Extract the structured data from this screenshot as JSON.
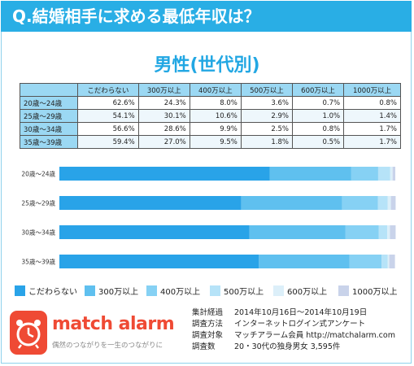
{
  "title": "Q.結婚相手に求める最低年収は？",
  "subtitle": "男性(世代別)",
  "colors": [
    "#29a3e8",
    "#5fc0ef",
    "#86d1f4",
    "#b6e3f8",
    "#dceff9",
    "#c9d3ea"
  ],
  "chart_data": {
    "type": "bar",
    "stacked": true,
    "orientation": "horizontal",
    "categories": [
      "20歳〜24歳",
      "25歳〜29歳",
      "30歳〜34歳",
      "35歳〜39歳"
    ],
    "series": [
      {
        "name": "こだわらない",
        "values": [
          62.6,
          54.1,
          56.6,
          59.4
        ]
      },
      {
        "name": "300万以上",
        "values": [
          24.3,
          30.1,
          28.6,
          27.0
        ]
      },
      {
        "name": "400万以上",
        "values": [
          8.0,
          10.6,
          9.9,
          9.5
        ]
      },
      {
        "name": "500万以上",
        "values": [
          3.6,
          2.9,
          2.5,
          1.8
        ]
      },
      {
        "name": "600万以上",
        "values": [
          0.7,
          1.0,
          0.8,
          0.5
        ]
      },
      {
        "name": "1000万以上",
        "values": [
          0.8,
          1.4,
          1.7,
          1.7
        ]
      }
    ],
    "xlim": [
      0,
      100
    ],
    "legend": "bottom"
  },
  "table": {
    "corner": "",
    "headers": [
      "こだわらない",
      "300万以上",
      "400万以上",
      "500万以上",
      "600万以上",
      "1000万以上"
    ],
    "rows": [
      {
        "label": "20歳〜24歳",
        "cells": [
          "62.6%",
          "24.3%",
          "8.0%",
          "3.6%",
          "0.7%",
          "0.8%"
        ]
      },
      {
        "label": "25歳〜29歳",
        "cells": [
          "54.1%",
          "30.1%",
          "10.6%",
          "2.9%",
          "1.0%",
          "1.4%"
        ]
      },
      {
        "label": "30歳〜34歳",
        "cells": [
          "56.6%",
          "28.6%",
          "9.9%",
          "2.5%",
          "0.8%",
          "1.7%"
        ]
      },
      {
        "label": "35歳〜39歳",
        "cells": [
          "59.4%",
          "27.0%",
          "9.5%",
          "1.8%",
          "0.5%",
          "1.7%"
        ]
      }
    ]
  },
  "logo": {
    "name": "match alarm",
    "tagline": "偶然のつながりを一生のつながりに"
  },
  "survey": [
    {
      "key": "集計経過",
      "value": "2014年10月16日～2014年10月19日"
    },
    {
      "key": "調査方法",
      "value": "インターネットログイン式アンケート"
    },
    {
      "key": "調査対象",
      "value": "マッチアラーム会員 http://matchalarm.com"
    },
    {
      "key": "調査数",
      "value": "20・30代の独身男女 3,595件"
    }
  ]
}
